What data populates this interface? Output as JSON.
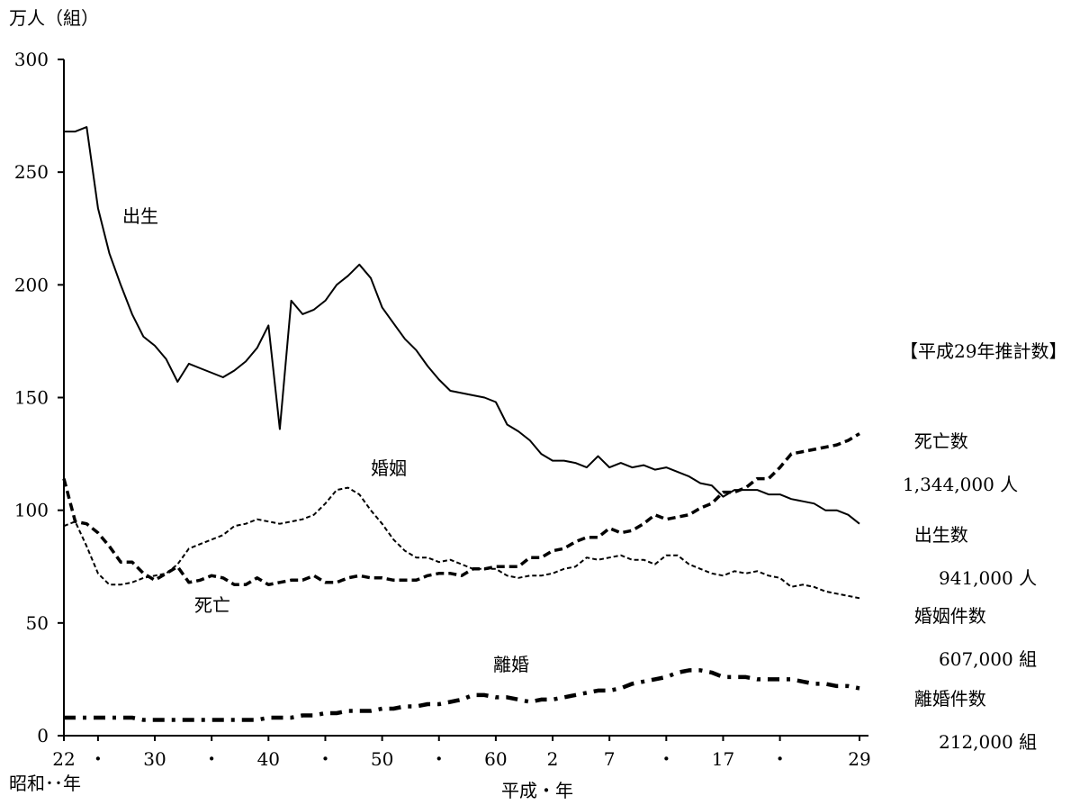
{
  "chart_data": {
    "type": "line",
    "ylabel": "万人（組）",
    "ylim": [
      0,
      300
    ],
    "yticks": [
      0,
      50,
      100,
      150,
      200,
      250,
      300
    ],
    "xrange": [
      1947,
      2017
    ],
    "x_ticks": [
      {
        "year": 1947,
        "label": "22"
      },
      {
        "year": 1950,
        "label": "・"
      },
      {
        "year": 1955,
        "label": "30"
      },
      {
        "year": 1960,
        "label": "・"
      },
      {
        "year": 1965,
        "label": "40"
      },
      {
        "year": 1970,
        "label": "・"
      },
      {
        "year": 1975,
        "label": "50"
      },
      {
        "year": 1980,
        "label": "・"
      },
      {
        "year": 1985,
        "label": "60"
      },
      {
        "year": 1990,
        "label": "2"
      },
      {
        "year": 1995,
        "label": "7"
      },
      {
        "year": 2000,
        "label": "・"
      },
      {
        "year": 2005,
        "label": "17"
      },
      {
        "year": 2010,
        "label": "・"
      },
      {
        "year": 2017,
        "label": "29"
      }
    ],
    "era_labels": {
      "showa": "昭和･･年",
      "heisei": "平成・年"
    },
    "legend_title": "【平成29年推計数】",
    "x": [
      1947,
      1948,
      1949,
      1950,
      1951,
      1952,
      1953,
      1954,
      1955,
      1956,
      1957,
      1958,
      1959,
      1960,
      1961,
      1962,
      1963,
      1964,
      1965,
      1966,
      1967,
      1968,
      1969,
      1970,
      1971,
      1972,
      1973,
      1974,
      1975,
      1976,
      1977,
      1978,
      1979,
      1980,
      1981,
      1982,
      1983,
      1984,
      1985,
      1986,
      1987,
      1988,
      1989,
      1990,
      1991,
      1992,
      1993,
      1994,
      1995,
      1996,
      1997,
      1998,
      1999,
      2000,
      2001,
      2002,
      2003,
      2004,
      2005,
      2006,
      2007,
      2008,
      2009,
      2010,
      2011,
      2012,
      2013,
      2014,
      2015,
      2016,
      2017
    ],
    "series": [
      {
        "name": "出生",
        "label": "出生",
        "style": "solid",
        "values": [
          268,
          268,
          270,
          234,
          214,
          200,
          187,
          177,
          173,
          167,
          157,
          165,
          163,
          161,
          159,
          162,
          166,
          172,
          182,
          136,
          193,
          187,
          189,
          193,
          200,
          204,
          209,
          203,
          190,
          183,
          176,
          171,
          164,
          158,
          153,
          152,
          151,
          150,
          148,
          138,
          135,
          131,
          125,
          122,
          122,
          121,
          119,
          124,
          119,
          121,
          119,
          120,
          118,
          119,
          117,
          115,
          112,
          111,
          106,
          109,
          109,
          109,
          107,
          107,
          105,
          104,
          103,
          100,
          100,
          98,
          94
        ]
      },
      {
        "name": "死亡",
        "label": "死亡",
        "style": "dash",
        "values": [
          114,
          95,
          94,
          90,
          84,
          77,
          77,
          72,
          69,
          72,
          75,
          68,
          69,
          71,
          70,
          67,
          67,
          70,
          67,
          68,
          69,
          69,
          71,
          68,
          68,
          70,
          71,
          70,
          70,
          69,
          69,
          69,
          71,
          72,
          72,
          71,
          74,
          74,
          75,
          75,
          75,
          79,
          79,
          82,
          83,
          86,
          88,
          88,
          92,
          90,
          91,
          94,
          98,
          96,
          97,
          98,
          101,
          103,
          108,
          108,
          110,
          114,
          114,
          119,
          125,
          126,
          127,
          128,
          129,
          131,
          134
        ]
      },
      {
        "name": "婚姻",
        "label": "婚姻",
        "style": "short-dash",
        "values": [
          93,
          95,
          84,
          72,
          67,
          67,
          68,
          70,
          71,
          72,
          76,
          83,
          85,
          87,
          89,
          93,
          94,
          96,
          95,
          94,
          95,
          96,
          98,
          103,
          109,
          110,
          107,
          100,
          94,
          87,
          82,
          79,
          79,
          77,
          78,
          76,
          74,
          74,
          74,
          71,
          70,
          71,
          71,
          72,
          74,
          75,
          79,
          78,
          79,
          80,
          78,
          78,
          76,
          80,
          80,
          76,
          74,
          72,
          71,
          73,
          72,
          73,
          71,
          70,
          66,
          67,
          66,
          64,
          63,
          62,
          61
        ]
      },
      {
        "name": "離婚",
        "label": "離婚",
        "style": "dash-dot",
        "values": [
          8,
          8,
          8,
          8,
          8,
          8,
          8,
          7,
          7,
          7,
          7,
          7,
          7,
          7,
          7,
          7,
          7,
          7,
          8,
          8,
          8,
          9,
          9,
          10,
          10,
          11,
          11,
          11,
          12,
          12,
          13,
          13,
          14,
          14,
          15,
          16,
          18,
          18,
          17,
          17,
          16,
          15,
          16,
          16,
          17,
          18,
          19,
          20,
          20,
          21,
          23,
          24,
          25,
          26,
          28,
          29,
          29,
          28,
          26,
          26,
          26,
          25,
          25,
          25,
          25,
          24,
          23,
          23,
          22,
          22,
          21
        ]
      }
    ],
    "legend": [
      {
        "name": "死亡数",
        "value": "1,344,000 人"
      },
      {
        "name": "出生数",
        "value": "941,000 人"
      },
      {
        "name": "婚姻件数",
        "value": "607,000 組"
      },
      {
        "name": "離婚件数",
        "value": "212,000 組"
      }
    ]
  }
}
